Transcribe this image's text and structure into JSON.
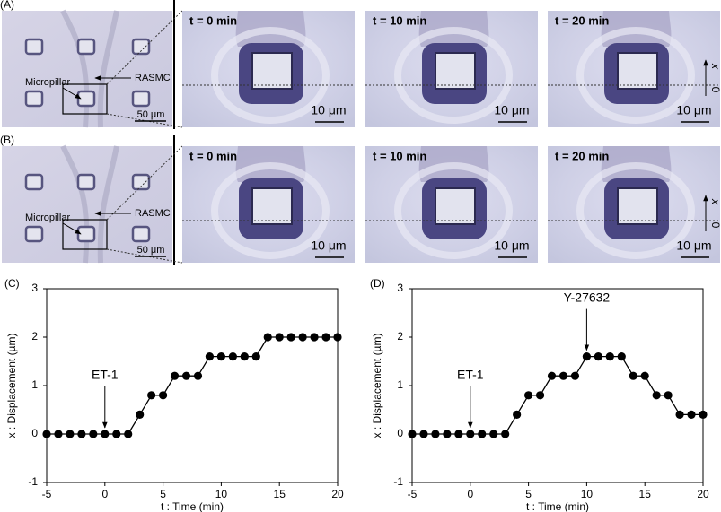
{
  "panels": [
    {
      "label": "(A)",
      "overview": {
        "pillar": "Micropillar",
        "cell": "RASMC",
        "scale": "50 μm"
      },
      "frames": [
        {
          "time": "t = 0 min",
          "scale": "10 μm"
        },
        {
          "time": "t = 10 min",
          "scale": "10 μm"
        },
        {
          "time": "t = 20 min",
          "scale": "10 μm"
        }
      ],
      "axis": {
        "name": "x",
        "origin": "0"
      }
    },
    {
      "label": "(B)",
      "overview": {
        "pillar": "Micropillar",
        "cell": "RASMC",
        "scale": "50 μm"
      },
      "frames": [
        {
          "time": "t = 0 min",
          "scale": "10 μm"
        },
        {
          "time": "t = 10 min",
          "scale": "10 μm"
        },
        {
          "time": "t = 20 min",
          "scale": "10 μm"
        }
      ],
      "axis": {
        "name": "x",
        "origin": "0"
      }
    }
  ],
  "chart_data": [
    {
      "type": "line",
      "panel_label": "(C)",
      "xlabel": "t : Time (min)",
      "ylabel": "x : Displacement (µm)",
      "color": "#000000",
      "x": [
        -5,
        -4,
        -3,
        -2,
        -1,
        0,
        1,
        2,
        3,
        4,
        5,
        6,
        7,
        8,
        9,
        10,
        11,
        12,
        13,
        14,
        15,
        16,
        17,
        18,
        19,
        20
      ],
      "values": [
        0,
        0,
        0,
        0,
        0,
        0,
        0,
        0,
        0.4,
        0.8,
        0.8,
        1.2,
        1.2,
        1.2,
        1.6,
        1.6,
        1.6,
        1.6,
        1.6,
        2,
        2,
        2,
        2,
        2,
        2,
        2
      ],
      "xlim": [
        -5,
        20
      ],
      "xticks": [
        -5,
        0,
        5,
        10,
        15,
        20
      ],
      "ylim": [
        -1,
        3
      ],
      "yticks": [
        -1,
        0,
        1,
        2,
        3
      ],
      "annotations": [
        {
          "text": "ET-1",
          "x": 0
        }
      ]
    },
    {
      "type": "line",
      "panel_label": "(D)",
      "xlabel": "t : Time (min)",
      "ylabel": "x : Displacement (µm)",
      "color": "#000000",
      "x": [
        -5,
        -4,
        -3,
        -2,
        -1,
        0,
        1,
        2,
        3,
        4,
        5,
        6,
        7,
        8,
        9,
        10,
        11,
        12,
        13,
        14,
        15,
        16,
        17,
        18,
        19,
        20
      ],
      "values": [
        0,
        0,
        0,
        0,
        0,
        0,
        0,
        0,
        0,
        0.4,
        0.8,
        0.8,
        1.2,
        1.2,
        1.2,
        1.6,
        1.6,
        1.6,
        1.6,
        1.2,
        1.2,
        0.8,
        0.8,
        0.4,
        0.4,
        0.4
      ],
      "xlim": [
        -5,
        20
      ],
      "xticks": [
        -5,
        0,
        5,
        10,
        15,
        20
      ],
      "ylim": [
        -1,
        3
      ],
      "yticks": [
        -1,
        0,
        1,
        2,
        3
      ],
      "annotations": [
        {
          "text": "ET-1",
          "x": 0
        },
        {
          "text": "Y-27632",
          "x": 10
        }
      ]
    }
  ]
}
